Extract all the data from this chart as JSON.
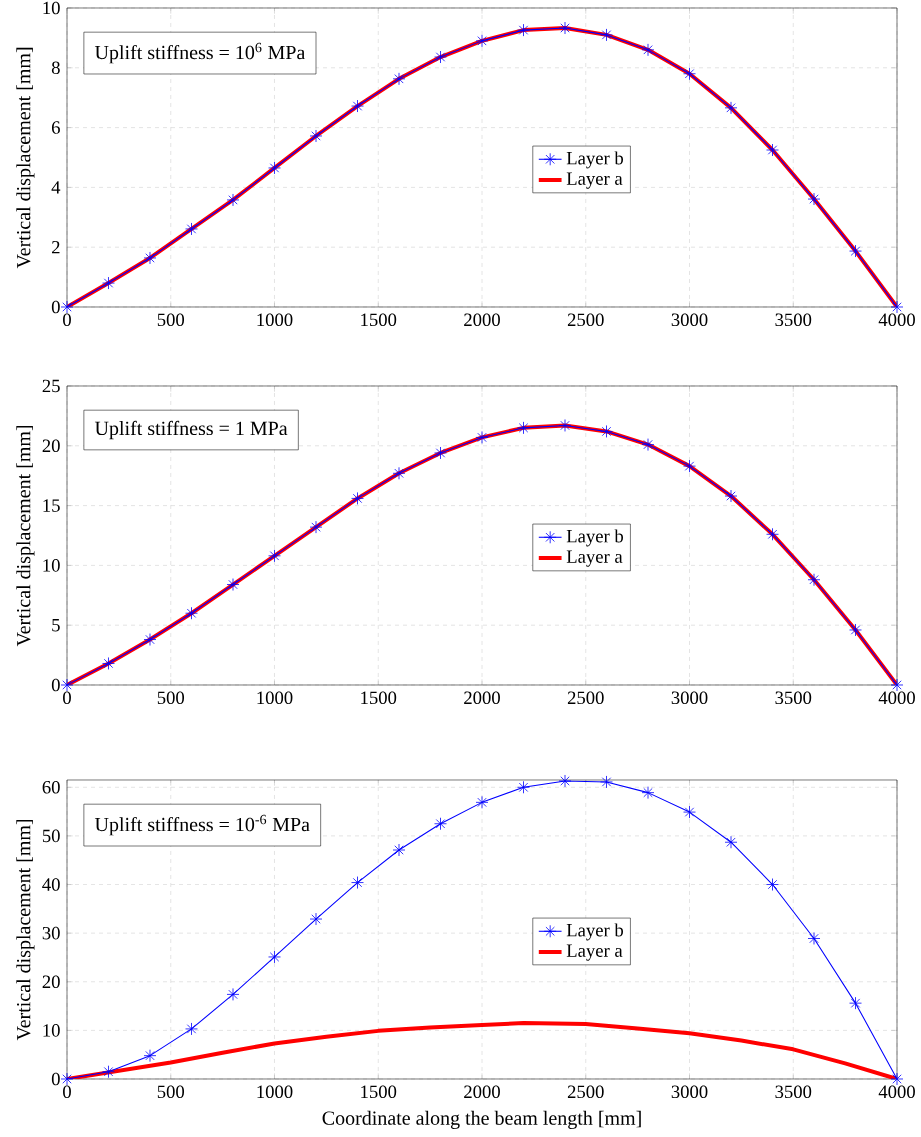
{
  "chart_data": [
    {
      "type": "line",
      "ylabel": "Vertical displacement [mm]",
      "annotations": [
        "Uplift stiffness = 10$^{6}$ MPa"
      ],
      "xlim": [
        0,
        4000
      ],
      "ylim": [
        0,
        10
      ],
      "xticks": [
        0,
        500,
        1000,
        1500,
        2000,
        2500,
        3000,
        3500,
        4000
      ],
      "yticks": [
        0,
        2,
        4,
        6,
        8,
        10
      ],
      "grid": true,
      "legend": "center",
      "series": [
        {
          "name": "Layer b",
          "color": "#0000ff",
          "marker": "cross",
          "x": [
            0,
            200,
            400,
            600,
            800,
            1000,
            1200,
            1400,
            1600,
            1800,
            2000,
            2200,
            2400,
            2600,
            2800,
            3000,
            3200,
            3400,
            3600,
            3800,
            4000
          ],
          "values": [
            0,
            0.8,
            1.64,
            2.61,
            3.58,
            4.65,
            5.72,
            6.72,
            7.63,
            8.36,
            8.9,
            9.26,
            9.33,
            9.1,
            8.6,
            7.8,
            6.66,
            5.25,
            3.61,
            1.87,
            0
          ]
        },
        {
          "name": "Layer a",
          "color": "#ff0000",
          "marker": "none",
          "x": [
            0,
            200,
            400,
            600,
            800,
            1000,
            1200,
            1400,
            1600,
            1800,
            2000,
            2200,
            2400,
            2600,
            2800,
            3000,
            3200,
            3400,
            3600,
            3800,
            4000
          ],
          "values": [
            0,
            0.8,
            1.64,
            2.61,
            3.58,
            4.65,
            5.72,
            6.72,
            7.63,
            8.36,
            8.9,
            9.26,
            9.33,
            9.1,
            8.6,
            7.8,
            6.66,
            5.25,
            3.61,
            1.87,
            0
          ]
        }
      ]
    },
    {
      "type": "line",
      "ylabel": "Vertical displacement [mm]",
      "annotations": [
        "Uplift stiffness = 1 MPa"
      ],
      "xlim": [
        0,
        4000
      ],
      "ylim": [
        0,
        25
      ],
      "xticks": [
        0,
        500,
        1000,
        1500,
        2000,
        2500,
        3000,
        3500,
        4000
      ],
      "yticks": [
        0,
        5,
        10,
        15,
        20,
        25
      ],
      "grid": true,
      "legend": "center",
      "series": [
        {
          "name": "Layer b",
          "color": "#0000ff",
          "marker": "cross",
          "x": [
            0,
            200,
            400,
            600,
            800,
            1000,
            1200,
            1400,
            1600,
            1800,
            2000,
            2200,
            2400,
            2600,
            2800,
            3000,
            3200,
            3400,
            3600,
            3800,
            4000
          ],
          "values": [
            0,
            1.8,
            3.8,
            6.0,
            8.4,
            10.8,
            13.2,
            15.6,
            17.7,
            19.4,
            20.7,
            21.5,
            21.7,
            21.2,
            20.1,
            18.3,
            15.8,
            12.6,
            8.8,
            4.6,
            0
          ]
        },
        {
          "name": "Layer a",
          "color": "#ff0000",
          "marker": "none",
          "x": [
            0,
            200,
            400,
            600,
            800,
            1000,
            1200,
            1400,
            1600,
            1800,
            2000,
            2200,
            2400,
            2600,
            2800,
            3000,
            3200,
            3400,
            3600,
            3800,
            4000
          ],
          "values": [
            0,
            1.8,
            3.8,
            6.0,
            8.4,
            10.8,
            13.2,
            15.6,
            17.7,
            19.4,
            20.7,
            21.5,
            21.7,
            21.2,
            20.1,
            18.3,
            15.8,
            12.6,
            8.8,
            4.6,
            0
          ]
        }
      ]
    },
    {
      "type": "line",
      "xlabel": "Coordinate along the beam length [mm]",
      "ylabel": "Vertical displacement [mm]",
      "annotations": [
        "Uplift stiffness = 10$^{-6}$ MPa"
      ],
      "xlim": [
        0,
        4000
      ],
      "ylim": [
        0,
        61.5
      ],
      "xticks": [
        0,
        500,
        1000,
        1500,
        2000,
        2500,
        3000,
        3500,
        4000
      ],
      "yticks": [
        0,
        10,
        20,
        30,
        40,
        50,
        60
      ],
      "grid": true,
      "legend": "center",
      "series": [
        {
          "name": "Layer b",
          "color": "#0000ff",
          "marker": "cross",
          "x": [
            0,
            200,
            400,
            600,
            800,
            1000,
            1200,
            1400,
            1600,
            1800,
            2000,
            2200,
            2400,
            2600,
            2800,
            3000,
            3200,
            3400,
            3600,
            3800,
            4000
          ],
          "values": [
            0,
            1.5,
            4.8,
            10.3,
            17.4,
            25.1,
            32.9,
            40.4,
            47.1,
            52.5,
            56.9,
            60.0,
            61.3,
            61.1,
            58.9,
            54.9,
            48.7,
            40.0,
            28.9,
            15.6,
            0
          ]
        },
        {
          "name": "Layer a",
          "color": "#ff0000",
          "marker": "none",
          "x": [
            0,
            250,
            500,
            750,
            1000,
            1250,
            1500,
            1750,
            2000,
            2200,
            2500,
            2750,
            3000,
            3250,
            3500,
            3750,
            4000
          ],
          "values": [
            0,
            1.7,
            3.4,
            5.4,
            7.3,
            8.7,
            9.9,
            10.6,
            11.1,
            11.5,
            11.3,
            10.4,
            9.4,
            7.9,
            6.1,
            3.2,
            0
          ]
        }
      ]
    }
  ]
}
